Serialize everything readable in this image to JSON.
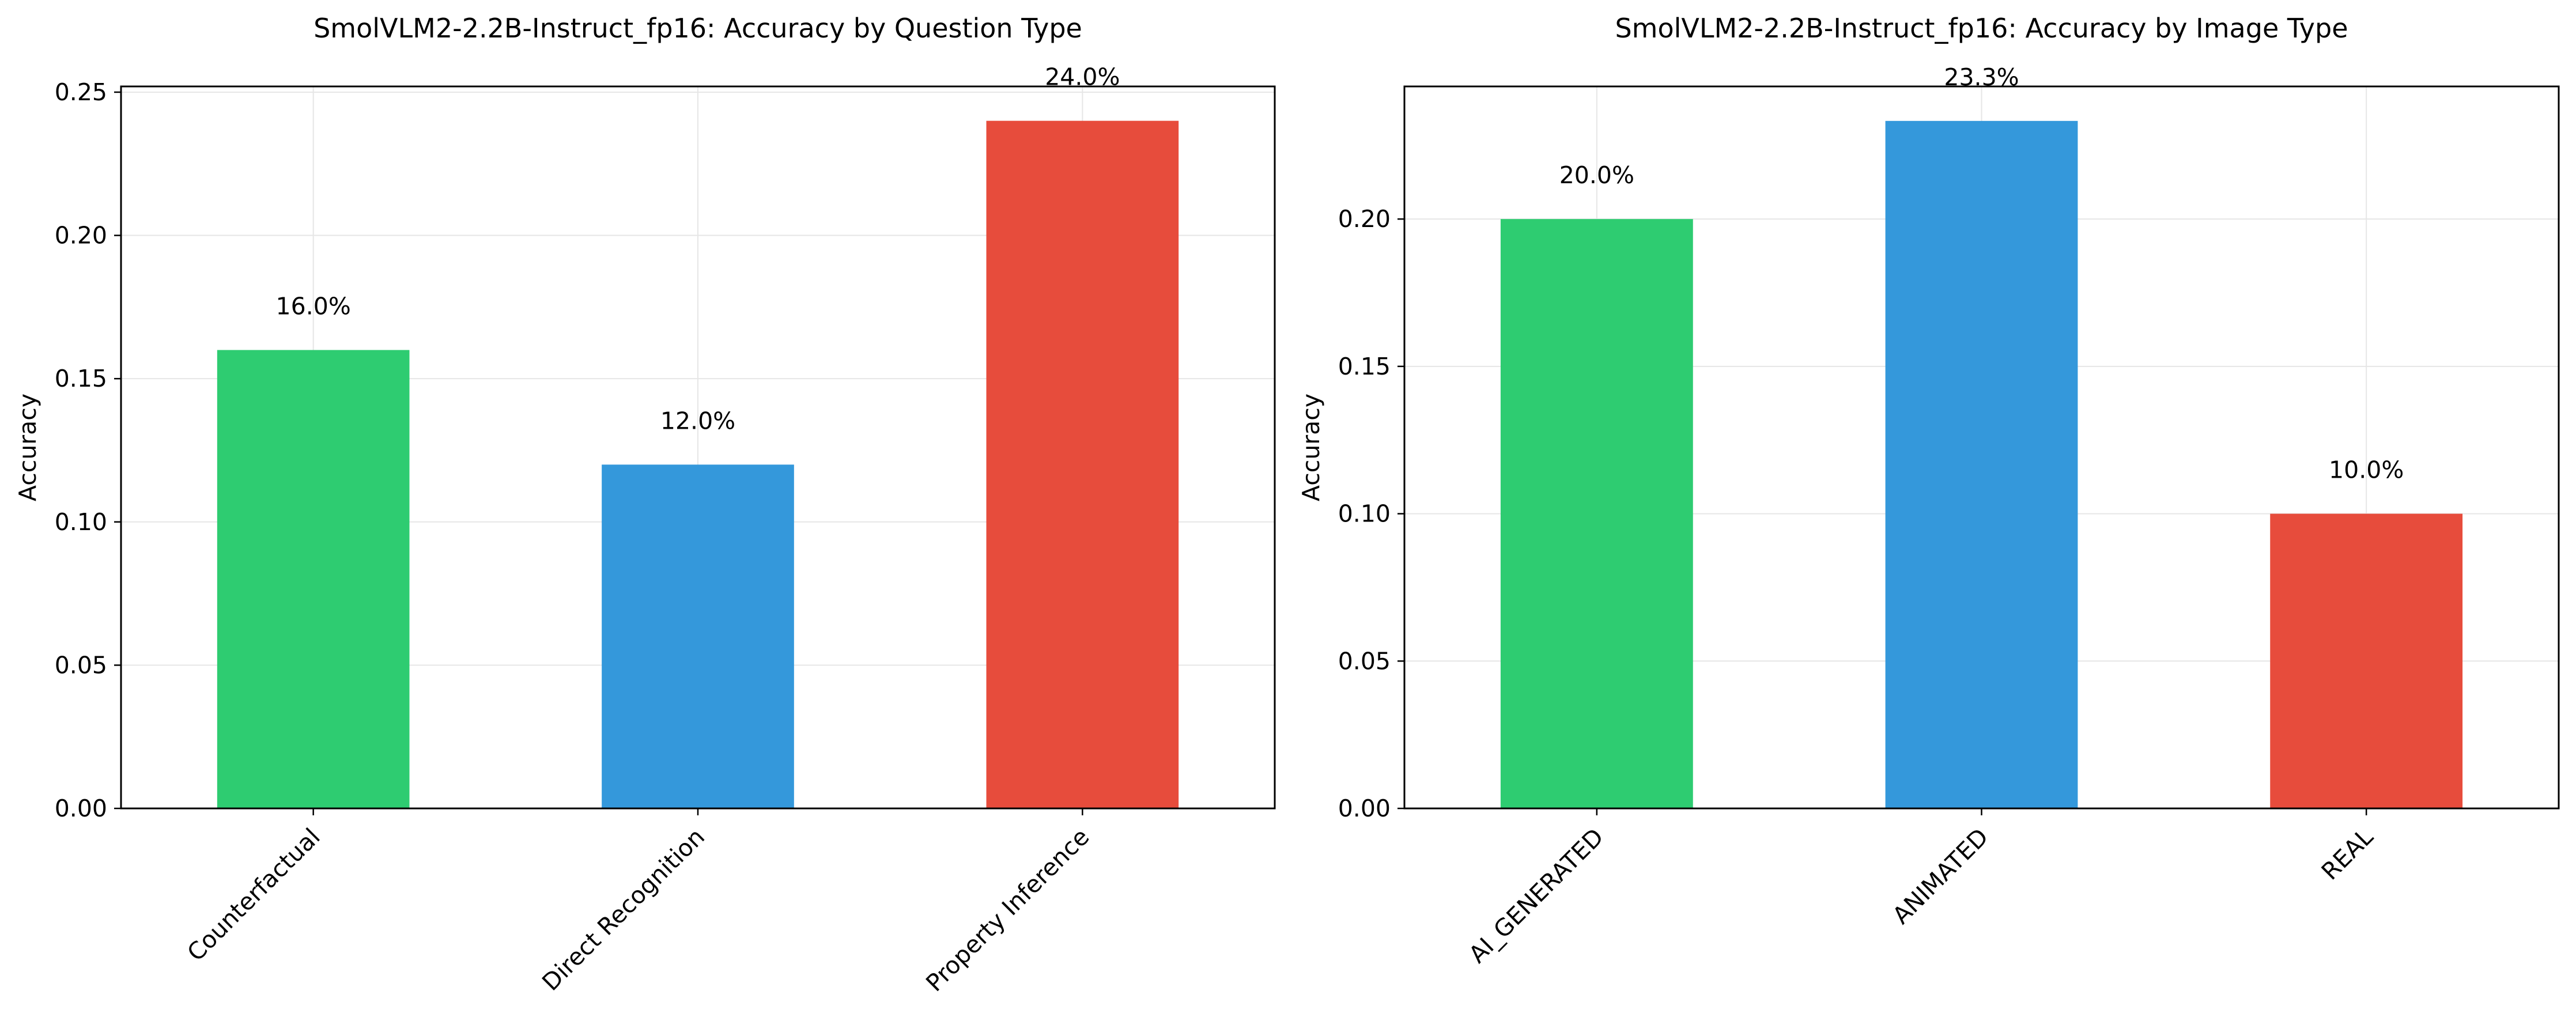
{
  "chart_data": [
    {
      "type": "bar",
      "title": "SmolVLM2-2.2B-Instruct_fp16: Accuracy by Question Type",
      "xlabel": "",
      "ylabel": "Accuracy",
      "categories": [
        "Counterfactual",
        "Direct Recognition",
        "Property Inference"
      ],
      "values": [
        0.16,
        0.12,
        0.24
      ],
      "data_labels": [
        "16.0%",
        "12.0%",
        "24.0%"
      ],
      "colors": [
        "#2ecc71",
        "#3498db",
        "#e74c3c"
      ],
      "yticks": [
        0.0,
        0.05,
        0.1,
        0.15,
        0.2,
        0.25
      ],
      "ytick_labels": [
        "0.00",
        "0.05",
        "0.10",
        "0.15",
        "0.20",
        "0.25"
      ],
      "ylim": [
        0,
        0.252
      ],
      "grid": true,
      "xtick_rotation": 45
    },
    {
      "type": "bar",
      "title": "SmolVLM2-2.2B-Instruct_fp16: Accuracy by Image Type",
      "xlabel": "",
      "ylabel": "Accuracy",
      "categories": [
        "AI_GENERATED",
        "ANIMATED",
        "REAL"
      ],
      "values": [
        0.2,
        0.2333,
        0.1
      ],
      "data_labels": [
        "20.0%",
        "23.3%",
        "10.0%"
      ],
      "colors": [
        "#2ecc71",
        "#3498db",
        "#e74c3c"
      ],
      "yticks": [
        0.0,
        0.05,
        0.1,
        0.15,
        0.2
      ],
      "ytick_labels": [
        "0.00",
        "0.05",
        "0.10",
        "0.15",
        "0.20"
      ],
      "ylim": [
        0,
        0.245
      ],
      "grid": true,
      "xtick_rotation": 45
    }
  ]
}
